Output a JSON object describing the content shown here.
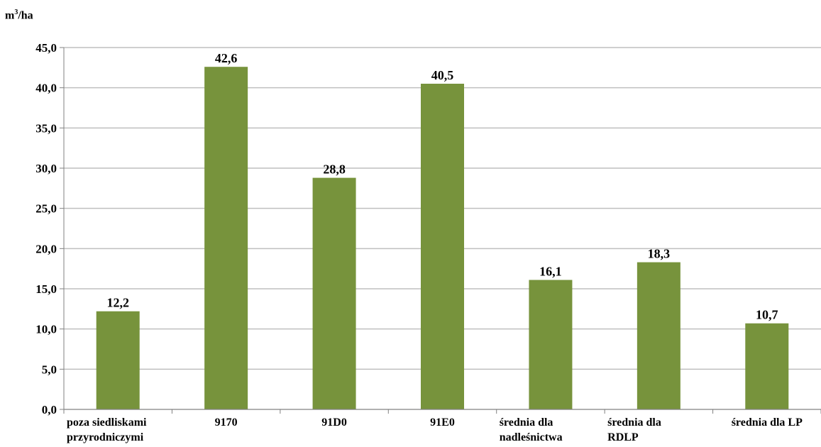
{
  "chart_data": {
    "type": "bar",
    "ylabel_base": "m",
    "ylabel_sup": "3",
    "ylabel_rest": "/ha",
    "categories": [
      [
        "poza siedliskami",
        "przyrodniczymi"
      ],
      [
        "9170"
      ],
      [
        "91D0"
      ],
      [
        "91E0"
      ],
      [
        "średnia dla",
        "nadleśnictwa"
      ],
      [
        "średnia dla",
        "RDLP"
      ],
      [
        "średnia dla LP"
      ]
    ],
    "values": [
      12.2,
      42.6,
      28.8,
      40.5,
      16.1,
      18.3,
      10.7
    ],
    "value_labels": [
      "12,2",
      "42,6",
      "28,8",
      "40,5",
      "16,1",
      "18,3",
      "10,7"
    ],
    "ylim": [
      0,
      45
    ],
    "yticks": [
      "0,0",
      "5,0",
      "10,0",
      "15,0",
      "20,0",
      "25,0",
      "30,0",
      "35,0",
      "40,0",
      "45,0"
    ],
    "grid": true,
    "bar_color": "#77933c",
    "grid_color": "#bfbfbf"
  }
}
